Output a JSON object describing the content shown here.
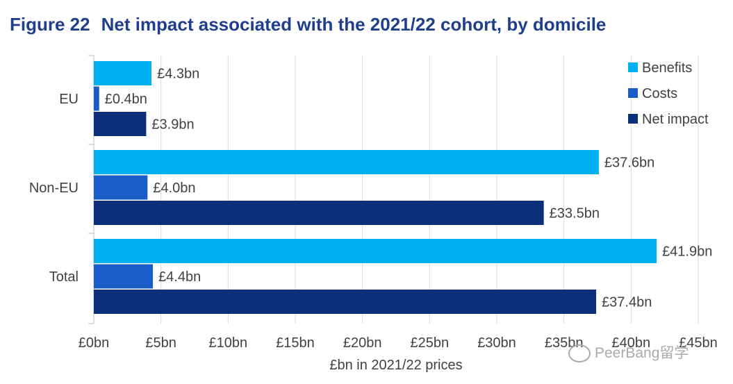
{
  "figure": {
    "number": "Figure 22",
    "title": "Net impact associated with the 2021/22 cohort, by domicile"
  },
  "chart_data": {
    "type": "bar",
    "orientation": "horizontal",
    "categories": [
      "EU",
      "Non-EU",
      "Total"
    ],
    "series": [
      {
        "name": "Benefits",
        "color": "#00b0f0",
        "values": [
          4.3,
          37.6,
          41.9
        ],
        "labels": [
          "£4.3bn",
          "£37.6bn",
          "£41.9bn"
        ]
      },
      {
        "name": "Costs",
        "color": "#1a5dc8",
        "values": [
          0.4,
          4.0,
          4.4
        ],
        "labels": [
          "£0.4bn",
          "£4.0bn",
          "£4.4bn"
        ]
      },
      {
        "name": "Net impact",
        "color": "#0b2f78",
        "values": [
          3.9,
          33.5,
          37.4
        ],
        "labels": [
          "£3.9bn",
          "£33.5bn",
          "£37.4bn"
        ]
      }
    ],
    "xlim": [
      0,
      45
    ],
    "xticks": [
      0,
      5,
      10,
      15,
      20,
      25,
      30,
      35,
      40,
      45
    ],
    "xtick_labels": [
      "£0bn",
      "£5bn",
      "£10bn",
      "£15bn",
      "£20bn",
      "£25bn",
      "£30bn",
      "£35bn",
      "£40bn",
      "£45bn"
    ],
    "xlabel": "£bn in 2021/22 prices",
    "ylabel": "",
    "grid": true,
    "legend_position": "top-right"
  },
  "watermark": {
    "text": "PeerBang留学"
  }
}
